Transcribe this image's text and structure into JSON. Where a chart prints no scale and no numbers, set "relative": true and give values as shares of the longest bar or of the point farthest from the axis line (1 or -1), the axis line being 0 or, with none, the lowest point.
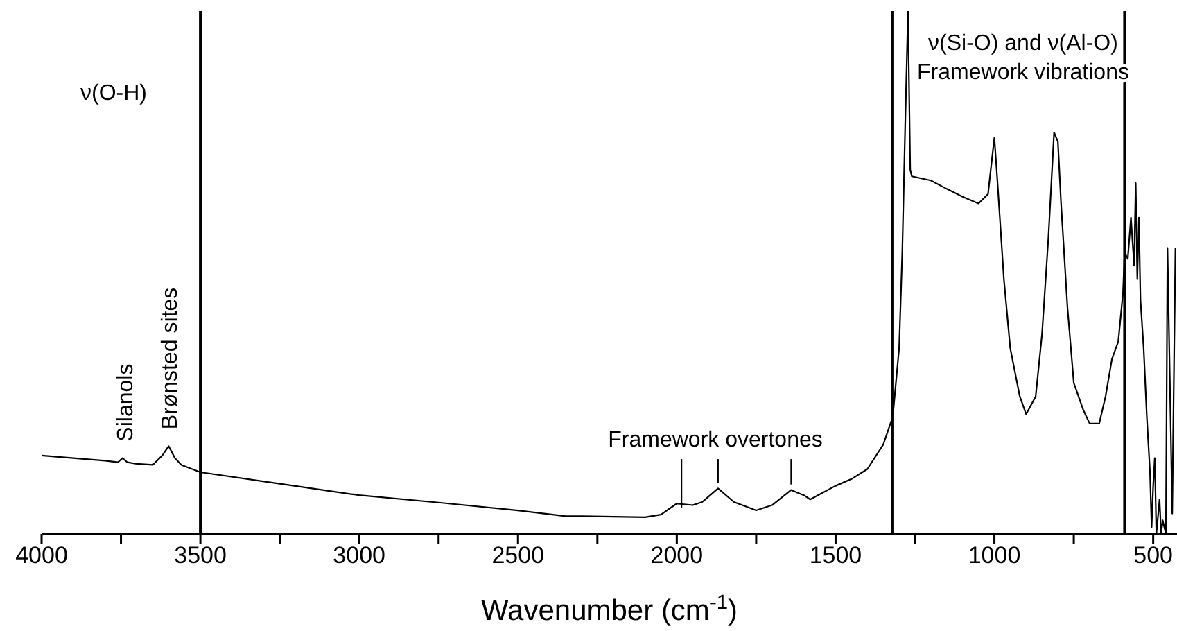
{
  "chart_data": {
    "type": "line",
    "relative": true,
    "xlabel": "Wavenumber (cm$^{-1}$)",
    "xlim": [
      4000,
      425
    ],
    "xticks": [
      4000,
      {
        "value": 3750,
        "label": null
      },
      3500,
      {
        "value": 3250,
        "label": null
      },
      3000,
      {
        "value": 2750,
        "label": null
      },
      2500,
      {
        "value": 2250,
        "label": null
      },
      2000,
      {
        "value": 1750,
        "label": null
      },
      1500,
      {
        "value": 1250,
        "label": null
      },
      1000,
      {
        "value": 750,
        "label": null
      },
      500
    ],
    "x": [
      4000,
      3900,
      3800,
      3760,
      3745,
      3730,
      3700,
      3650,
      3620,
      3600,
      3580,
      3560,
      3500,
      3250,
      3000,
      2750,
      2500,
      2350,
      2300,
      2100,
      2050,
      2000,
      1950,
      1920,
      1870,
      1820,
      1750,
      1700,
      1640,
      1600,
      1580,
      1500,
      1450,
      1400,
      1350,
      1320,
      1300,
      1290,
      1280,
      1272,
      1265,
      1260,
      1230,
      1200,
      1150,
      1100,
      1050,
      1020,
      1000,
      990,
      970,
      950,
      920,
      900,
      870,
      850,
      830,
      812,
      800,
      790,
      770,
      750,
      720,
      700,
      670,
      650,
      630,
      610,
      595,
      590,
      580,
      570,
      560,
      555,
      550,
      545,
      540,
      530,
      520,
      510,
      505,
      500,
      495,
      490,
      480,
      475,
      470,
      460,
      455,
      440,
      430
    ],
    "series": [
      {
        "color": "#000000",
        "values": [
          0.15,
          0.145,
          0.14,
          0.137,
          0.145,
          0.137,
          0.134,
          0.132,
          0.15,
          0.168,
          0.145,
          0.132,
          0.118,
          0.096,
          0.074,
          0.06,
          0.045,
          0.034,
          0.034,
          0.032,
          0.037,
          0.058,
          0.055,
          0.061,
          0.087,
          0.061,
          0.045,
          0.055,
          0.084,
          0.074,
          0.066,
          0.092,
          0.105,
          0.124,
          0.171,
          0.224,
          0.355,
          0.539,
          0.803,
          1.0,
          0.697,
          0.684,
          0.68,
          0.676,
          0.66,
          0.645,
          0.632,
          0.65,
          0.758,
          0.671,
          0.487,
          0.355,
          0.263,
          0.229,
          0.263,
          0.382,
          0.566,
          0.768,
          0.75,
          0.632,
          0.434,
          0.289,
          0.237,
          0.211,
          0.211,
          0.263,
          0.334,
          0.368,
          0.461,
          0.539,
          0.526,
          0.605,
          0.513,
          0.671,
          0.487,
          0.605,
          0.447,
          0.355,
          0.224,
          0.118,
          0.013,
          0.092,
          0.145,
          0.0,
          0.066,
          0.0,
          0.026,
          0.0,
          0.547,
          0.039,
          0.547
        ]
      }
    ],
    "ref_lines": [
      {
        "axis": "x",
        "value": 3500,
        "color": "#000000"
      },
      {
        "axis": "x",
        "value": 1320,
        "color": "#000000"
      },
      {
        "axis": "x",
        "value": 590,
        "color": "#000000"
      }
    ],
    "annotations": [
      "ν(O-H)",
      {
        "text": "Silanols",
        "x": 3740,
        "y": 0.145
      },
      {
        "text": "Brønsted sites",
        "x": 3600,
        "y": 0.168
      },
      "Framework overtones",
      "ν(Si-O) and ν(Al-O)\nFramework vibrations"
    ],
    "grid": false,
    "legend": false,
    "marker": "none",
    "line_style": "solid"
  }
}
